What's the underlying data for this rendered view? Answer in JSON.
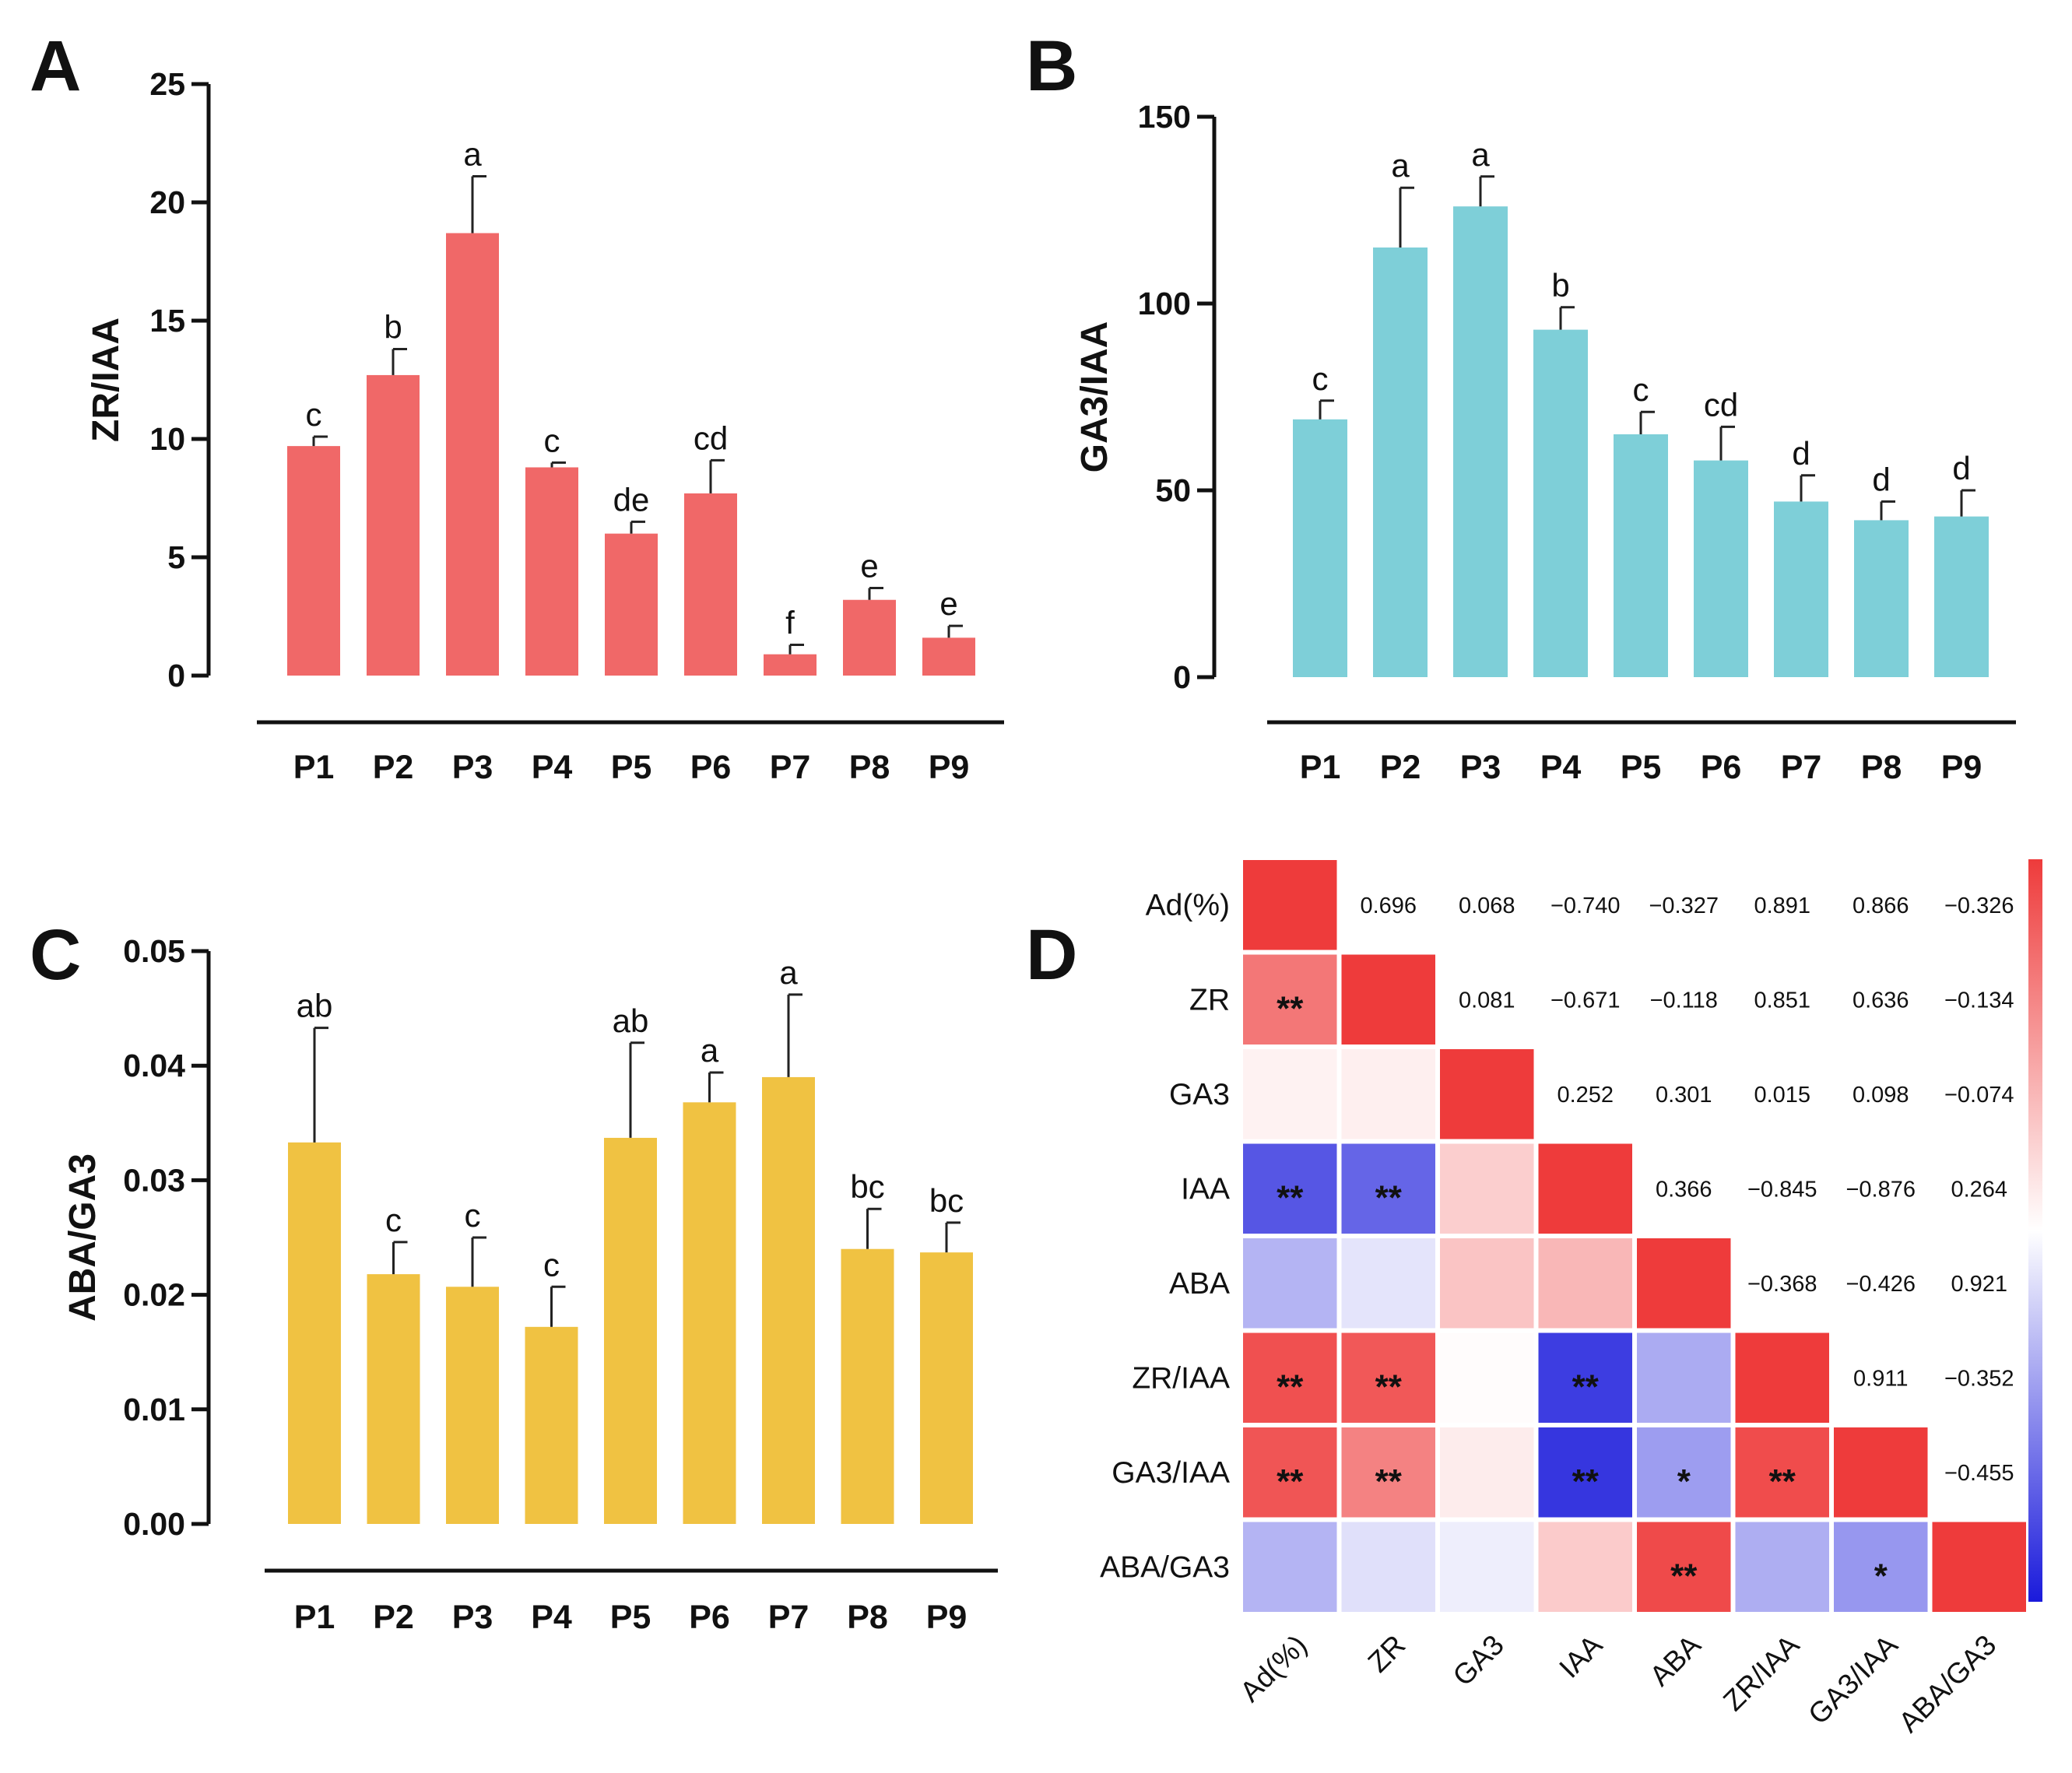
{
  "chart_data": [
    {
      "panel": "A",
      "type": "bar",
      "ylabel": "ZR/IAA",
      "xlabel": "",
      "ylim": [
        0,
        25
      ],
      "yticks": [
        "0",
        "5",
        "10",
        "15",
        "20",
        "25"
      ],
      "categories": [
        "P1",
        "P2",
        "P3",
        "P4",
        "P5",
        "P6",
        "P7",
        "P8",
        "P9"
      ],
      "values": [
        9.7,
        12.7,
        18.7,
        8.8,
        6.0,
        7.7,
        0.9,
        3.2,
        1.6
      ],
      "errors": [
        0.4,
        1.1,
        2.4,
        0.2,
        0.5,
        1.4,
        0.4,
        0.5,
        0.5
      ],
      "letters": [
        "c",
        "b",
        "a",
        "c",
        "de",
        "cd",
        "f",
        "e",
        "e"
      ],
      "color": "#f06868"
    },
    {
      "panel": "B",
      "type": "bar",
      "ylabel": "GA3/IAA",
      "xlabel": "",
      "ylim": [
        0,
        150
      ],
      "yticks": [
        "0",
        "50",
        "100",
        "150"
      ],
      "categories": [
        "P1",
        "P2",
        "P3",
        "P4",
        "P5",
        "P6",
        "P7",
        "P8",
        "P9"
      ],
      "values": [
        69,
        115,
        126,
        93,
        65,
        58,
        47,
        42,
        43
      ],
      "errors": [
        5,
        16,
        8,
        6,
        6,
        9,
        7,
        5,
        7
      ],
      "letters": [
        "c",
        "a",
        "a",
        "b",
        "c",
        "cd",
        "d",
        "d",
        "d"
      ],
      "color": "#7ecfd8"
    },
    {
      "panel": "C",
      "type": "bar",
      "ylabel": "ABA/GA3",
      "xlabel": "",
      "ylim": [
        0,
        0.05
      ],
      "yticks": [
        "0.00",
        "0.01",
        "0.02",
        "0.03",
        "0.04",
        "0.05"
      ],
      "categories": [
        "P1",
        "P2",
        "P3",
        "P4",
        "P5",
        "P6",
        "P7",
        "P8",
        "P9"
      ],
      "values": [
        0.0333,
        0.0218,
        0.0207,
        0.0172,
        0.0337,
        0.0368,
        0.039,
        0.024,
        0.0237
      ],
      "errors": [
        0.01,
        0.0028,
        0.0043,
        0.0035,
        0.0083,
        0.0026,
        0.0072,
        0.0035,
        0.0026
      ],
      "letters": [
        "ab",
        "c",
        "c",
        "c",
        "ab",
        "a",
        "a",
        "bc",
        "bc"
      ],
      "color": "#f0c242"
    },
    {
      "panel": "D",
      "type": "heatmap",
      "title": "",
      "variables": [
        "Ad(%)",
        "ZR",
        "GA3",
        "IAA",
        "ABA",
        "ZR/IAA",
        "GA3/IAA",
        "ABA/GA3"
      ],
      "upper_labels": [
        [
          null,
          "0.696",
          "0.068",
          "−0.740",
          "−0.327",
          "0.891",
          "0.866",
          "−0.326"
        ],
        [
          null,
          null,
          "0.081",
          "−0.671",
          "−0.118",
          "0.851",
          "0.636",
          "−0.134"
        ],
        [
          null,
          null,
          null,
          "0.252",
          "0.301",
          "0.015",
          "0.098",
          "−0.074"
        ],
        [
          null,
          null,
          null,
          null,
          "0.366",
          "−0.845",
          "−0.876",
          "0.264"
        ],
        [
          null,
          null,
          null,
          null,
          null,
          "−0.368",
          "−0.426",
          "0.921"
        ],
        [
          null,
          null,
          null,
          null,
          null,
          null,
          "0.911",
          "−0.352"
        ],
        [
          null,
          null,
          null,
          null,
          null,
          null,
          null,
          "−0.455"
        ],
        [
          null,
          null,
          null,
          null,
          null,
          null,
          null,
          null
        ]
      ],
      "lower_values": [
        [
          1.0,
          null,
          null,
          null,
          null,
          null,
          null,
          null
        ],
        [
          0.696,
          1.0,
          null,
          null,
          null,
          null,
          null,
          null
        ],
        [
          0.068,
          0.081,
          1.0,
          null,
          null,
          null,
          null,
          null
        ],
        [
          -0.74,
          -0.671,
          0.252,
          1.0,
          null,
          null,
          null,
          null
        ],
        [
          -0.327,
          -0.118,
          0.301,
          0.366,
          1.0,
          null,
          null,
          null
        ],
        [
          0.891,
          0.851,
          0.015,
          -0.845,
          -0.368,
          1.0,
          null,
          null
        ],
        [
          0.866,
          0.636,
          0.098,
          -0.876,
          -0.426,
          0.911,
          1.0,
          null
        ],
        [
          -0.326,
          -0.134,
          -0.074,
          0.264,
          0.921,
          -0.352,
          -0.455,
          1.0
        ]
      ],
      "stars": [
        [
          "",
          "",
          "",
          "",
          "",
          "",
          "",
          ""
        ],
        [
          "**",
          "",
          "",
          "",
          "",
          "",
          "",
          ""
        ],
        [
          "",
          "",
          "",
          "",
          "",
          "",
          "",
          ""
        ],
        [
          "**",
          "**",
          "",
          "",
          "",
          "",
          "",
          ""
        ],
        [
          "",
          "",
          "",
          "",
          "",
          "",
          "",
          ""
        ],
        [
          "**",
          "**",
          "",
          "**",
          "",
          "",
          "",
          ""
        ],
        [
          "**",
          "**",
          "",
          "**",
          "*",
          "**",
          "",
          ""
        ],
        [
          "",
          "",
          "",
          "",
          "**",
          "",
          "*",
          ""
        ]
      ],
      "colorscale": {
        "low": "#1a1adb",
        "mid": "#ffffff",
        "high": "#ee3b3b",
        "range": [
          -1,
          1
        ]
      }
    }
  ]
}
